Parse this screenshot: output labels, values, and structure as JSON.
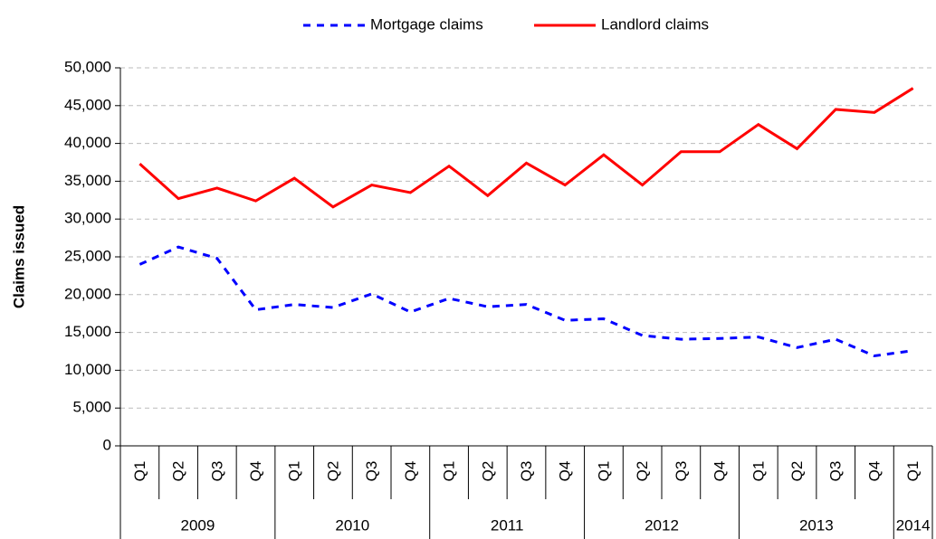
{
  "chart_data": {
    "type": "line",
    "y_axis_title": "Claims issued",
    "groups": [
      {
        "name": "2009",
        "categories": [
          "Q1",
          "Q2",
          "Q3",
          "Q4"
        ]
      },
      {
        "name": "2010",
        "categories": [
          "Q1",
          "Q2",
          "Q3",
          "Q4"
        ]
      },
      {
        "name": "2011",
        "categories": [
          "Q1",
          "Q2",
          "Q3",
          "Q4"
        ]
      },
      {
        "name": "2012",
        "categories": [
          "Q1",
          "Q2",
          "Q3",
          "Q4"
        ]
      },
      {
        "name": "2013",
        "categories": [
          "Q1",
          "Q2",
          "Q3",
          "Q4"
        ]
      },
      {
        "name": "2014",
        "categories": [
          "Q1"
        ]
      }
    ],
    "series": [
      {
        "name": "Mortgage claims",
        "color": "#0000ff",
        "dashed": true,
        "values": [
          24000,
          26300,
          24800,
          18000,
          18700,
          18300,
          20100,
          17700,
          19500,
          18400,
          18700,
          16600,
          16800,
          14600,
          14100,
          14200,
          14400,
          13000,
          14100,
          11900,
          12600
        ]
      },
      {
        "name": "Landlord claims",
        "color": "#ff0000",
        "dashed": false,
        "values": [
          37300,
          32700,
          34100,
          32400,
          35400,
          31600,
          34500,
          33500,
          37000,
          33100,
          37400,
          34500,
          38500,
          34500,
          38900,
          38900,
          42500,
          39300,
          44500,
          44100,
          47300
        ]
      }
    ],
    "ylim": [
      0,
      50000
    ],
    "yticks": [
      0,
      {
        "value": 5000,
        "label": "5,000"
      },
      {
        "value": 10000,
        "label": "10,000"
      },
      {
        "value": 15000,
        "label": "15,000"
      },
      {
        "value": 20000,
        "label": "20,000"
      },
      {
        "value": 25000,
        "label": "25,000"
      },
      {
        "value": 30000,
        "label": "30,000"
      },
      {
        "value": 35000,
        "label": "35,000"
      },
      {
        "value": 40000,
        "label": "40,000"
      },
      {
        "value": 45000,
        "label": "45,000"
      },
      {
        "value": 50000,
        "label": "50,000"
      }
    ],
    "grid": true,
    "legend": "top"
  }
}
